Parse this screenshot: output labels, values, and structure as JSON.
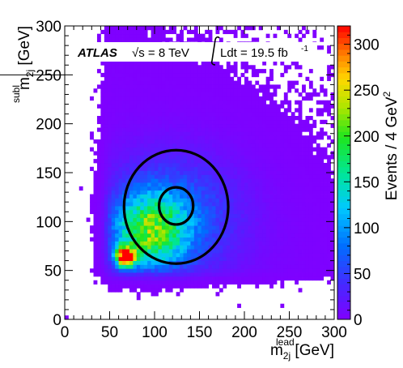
{
  "chart_data": {
    "type": "heatmap",
    "experiment": "ATLAS",
    "energy_label": "√s = 8 TeV",
    "lumi_label": "Ldt = 19.5 fb",
    "lumi_unit_exp": "-1",
    "x_axis": {
      "label_base": "m",
      "label_sub": "2j",
      "label_sup": "lead",
      "label_unit": " [GeV]",
      "range": [
        0,
        300
      ],
      "ticks": [
        "0",
        "50",
        "100",
        "150",
        "200",
        "250",
        "300"
      ]
    },
    "y_axis": {
      "label_base": "m",
      "label_sub": "2j",
      "label_sup": "subl",
      "label_unit": " [GeV]",
      "range": [
        0,
        300
      ],
      "ticks": [
        "0",
        "50",
        "100",
        "150",
        "200",
        "250",
        "300"
      ]
    },
    "z_axis": {
      "label": "Events / 4 GeV",
      "label_sup": "2",
      "range": [
        0,
        320
      ],
      "ticks": [
        "0",
        "50",
        "100",
        "150",
        "200",
        "250",
        "300"
      ]
    },
    "density_model": {
      "bin_width_gev": 4,
      "peak_x": 68,
      "peak_y": 64,
      "peak_value": 320,
      "mass_threshold_gev": 46,
      "description_free": true
    },
    "regions": [
      {
        "shape": "circle",
        "center": [
          124,
          115
        ],
        "radius": 58
      },
      {
        "shape": "circle",
        "center": [
          124,
          116
        ],
        "radius": 19
      }
    ],
    "line_y": 250
  }
}
